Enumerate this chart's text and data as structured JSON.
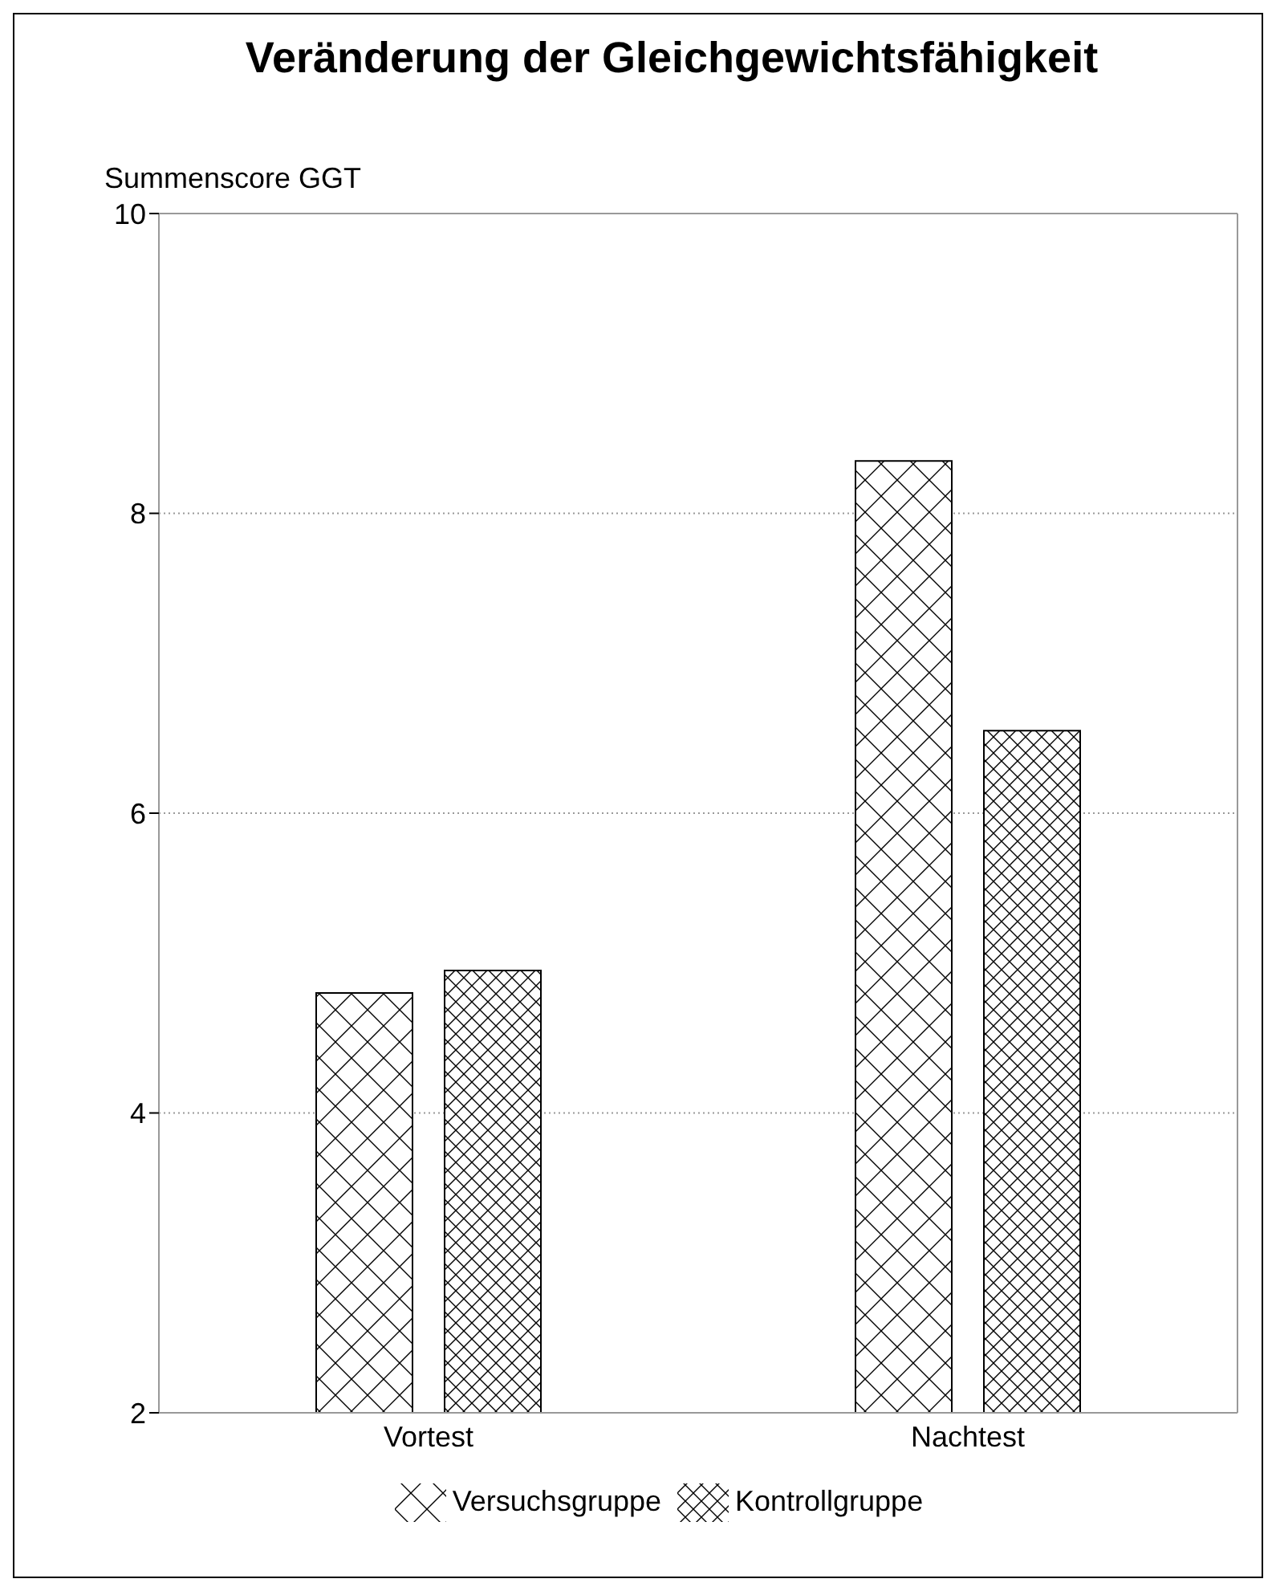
{
  "chart_data": {
    "type": "bar",
    "title": "Veränderung der Gleichgewichtsfähigkeit",
    "ylabel": "Summenscore GGT",
    "categories": [
      "Vortest",
      "Nachtest"
    ],
    "series": [
      {
        "name": "Versuchsgruppe",
        "color": "#000000",
        "values": [
          4.8,
          8.35
        ]
      },
      {
        "name": "Kontrollgruppe",
        "color": "#000000",
        "values": [
          4.95,
          6.55
        ]
      }
    ],
    "ylim": [
      2,
      10
    ],
    "yticks": [
      2,
      4,
      6,
      8,
      10
    ],
    "grid": "y",
    "legend": "bottom"
  }
}
